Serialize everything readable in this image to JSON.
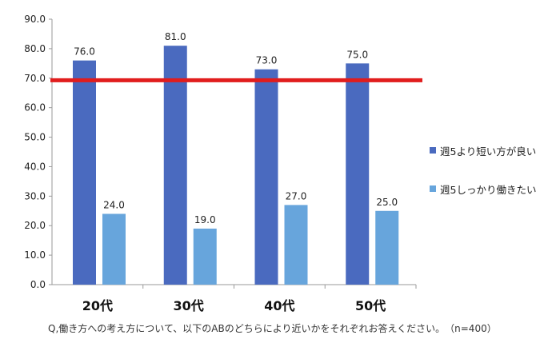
{
  "chart_data": {
    "type": "bar",
    "categories": [
      "20代",
      "30代",
      "40代",
      "50代"
    ],
    "series": [
      {
        "name": "週5より短い方が良い",
        "values": [
          76.0,
          81.0,
          73.0,
          75.0
        ],
        "color": "#4a6abf"
      },
      {
        "name": "週5しっかり働きたい",
        "values": [
          24.0,
          19.0,
          27.0,
          25.0
        ],
        "color": "#67a5dc"
      }
    ],
    "ylim": [
      0,
      90
    ],
    "yticks": [
      "0.0",
      "10.0",
      "20.0",
      "30.0",
      "40.0",
      "50.0",
      "60.0",
      "70.0",
      "80.0",
      "90.0"
    ],
    "reference_line": {
      "value": 69.3,
      "color": "#e11d1d"
    },
    "grid": false,
    "legend_position": "right",
    "title": "",
    "xlabel": "",
    "ylabel": ""
  },
  "footnote": "Q,働き方への考え方について、以下のABのどちらにより近いかをそれぞれお答えください。　（n=400）"
}
